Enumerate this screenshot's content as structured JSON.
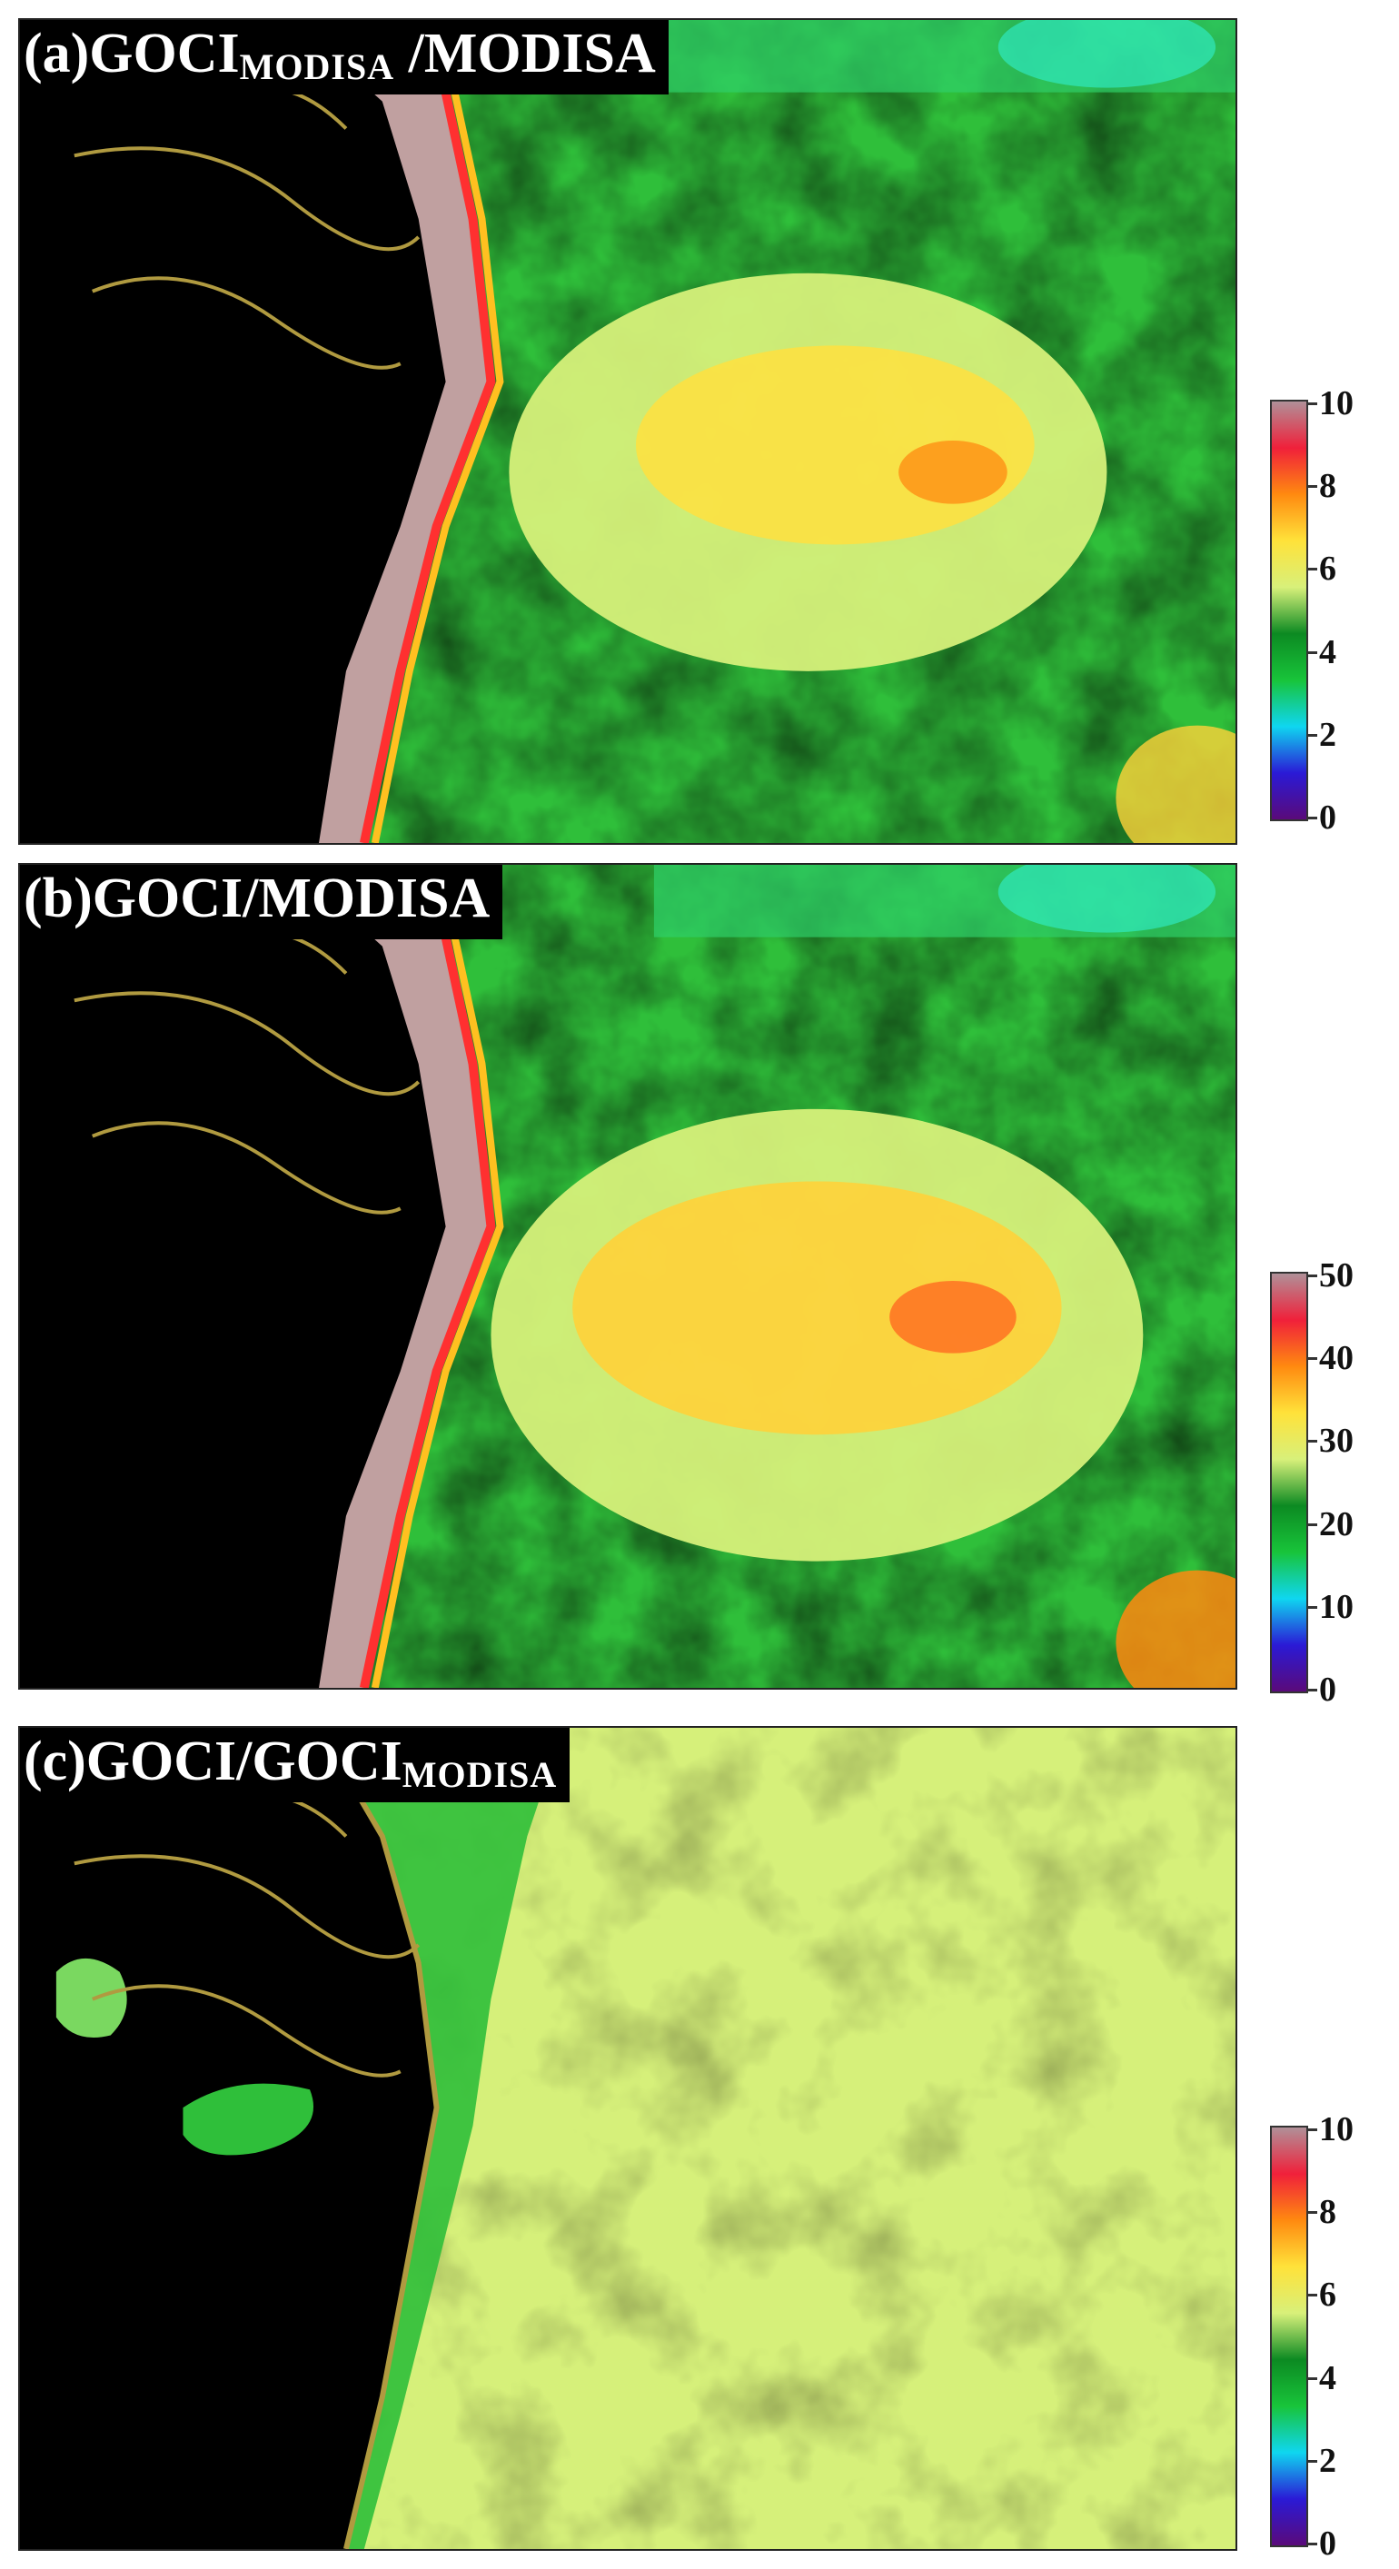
{
  "panels": [
    {
      "id": "a",
      "label_main": "(a)GOCI",
      "label_sub": "MODISA",
      "label_tail": " /MODISA",
      "colorbar_ticks": [
        "10",
        "8",
        "6",
        "4",
        "2",
        "0"
      ]
    },
    {
      "id": "b",
      "label_main": "(b)GOCI/MODISA",
      "label_sub": "",
      "label_tail": "",
      "colorbar_ticks": [
        "50",
        "40",
        "30",
        "20",
        "10",
        "0"
      ]
    },
    {
      "id": "c",
      "label_main": "(c)GOCI/GOCI",
      "label_sub": "MODISA",
      "label_tail": "",
      "colorbar_ticks": [
        "10",
        "8",
        "6",
        "4",
        "2",
        "0"
      ]
    }
  ],
  "colorbar_colors": [
    "#5a0a7a",
    "#2a1ad6",
    "#0fd6f0",
    "#18c43a",
    "#0c8a22",
    "#d8f07a",
    "#ffe23a",
    "#ff8a10",
    "#f0203a",
    "#b09098"
  ],
  "colors": {
    "land": "#000000",
    "coastline": "#b09a40",
    "turbid_coast": "#c0a0a0",
    "deep_green": "#138a2a",
    "bright_green": "#2fd040",
    "yellow_green": "#d6f07a",
    "yellow": "#ffe040",
    "cyan": "#30f0d0"
  }
}
